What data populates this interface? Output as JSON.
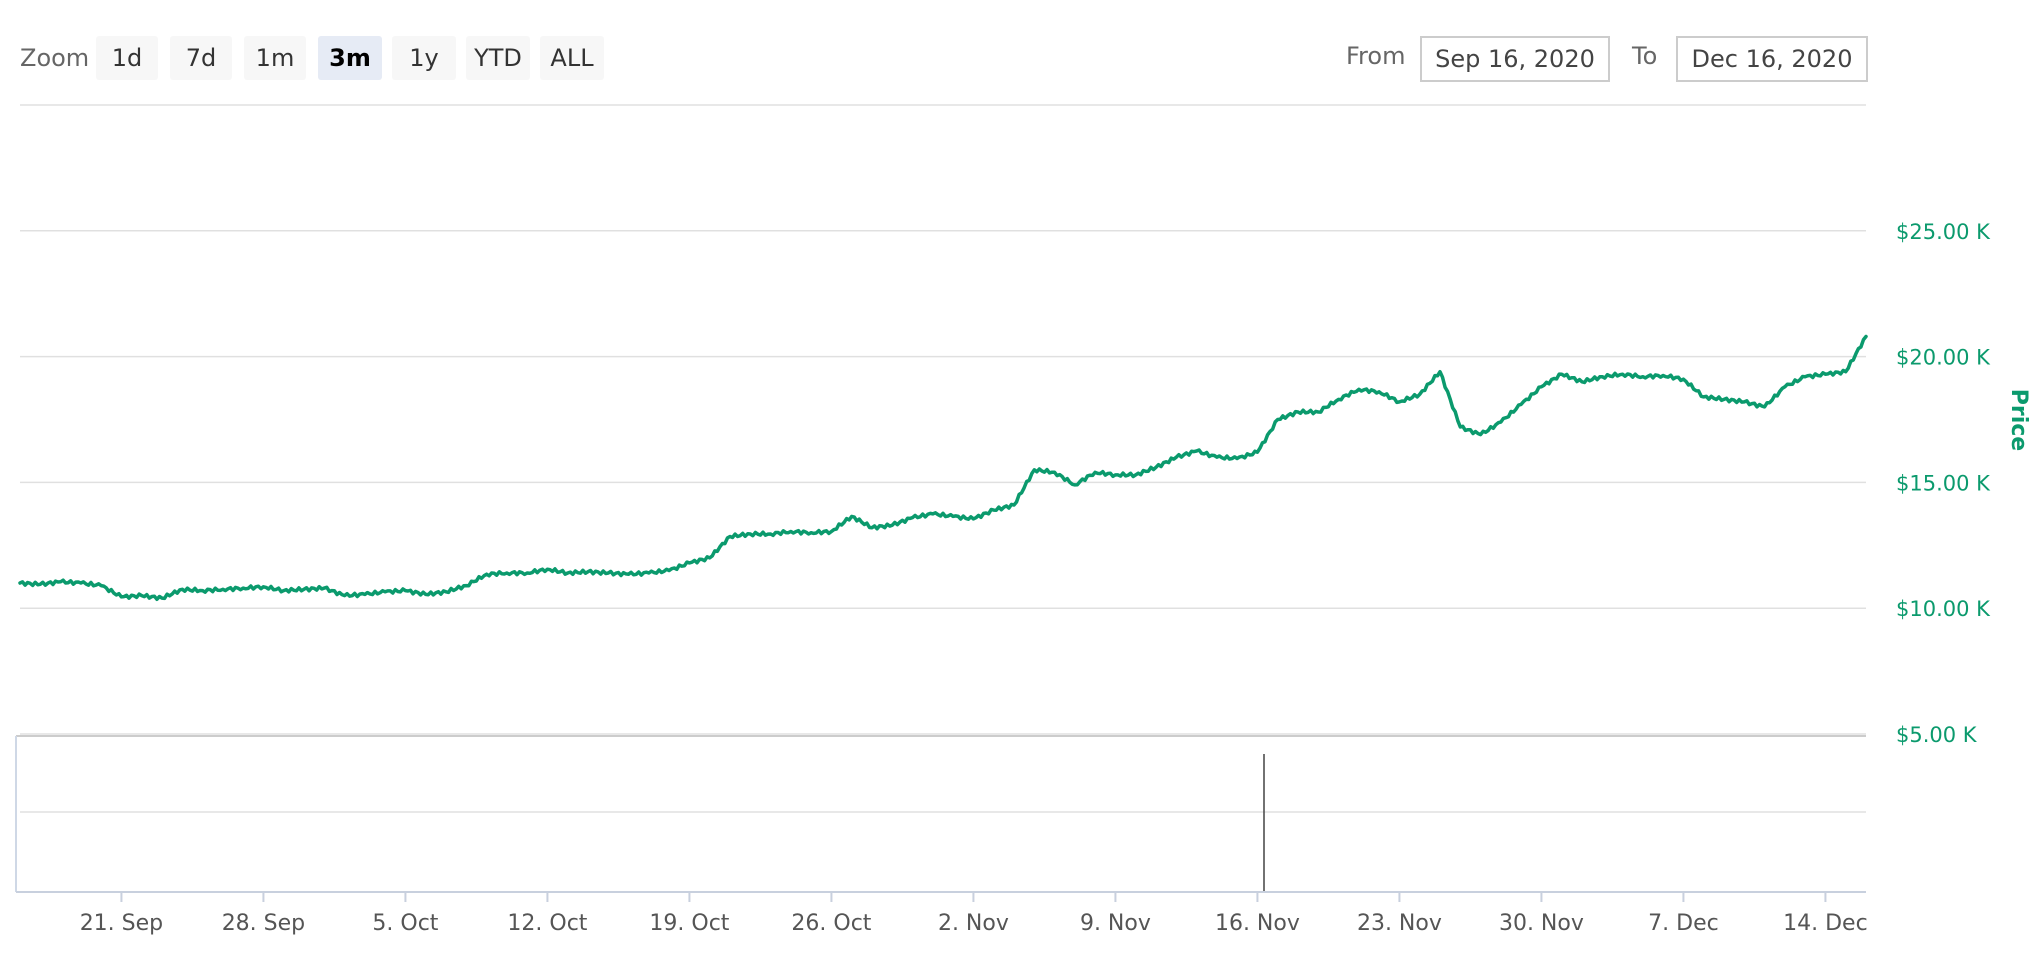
{
  "toolbar": {
    "zoom_label": "Zoom",
    "zoom_buttons": [
      "1d",
      "7d",
      "1m",
      "3m",
      "1y",
      "YTD",
      "ALL"
    ],
    "active_zoom": "3m",
    "from_label": "From",
    "from_value": "Sep 16, 2020",
    "to_label": "To",
    "to_value": "Dec 16, 2020"
  },
  "colors": {
    "line": "#0b9a6d",
    "grid": "#e0e0e0",
    "axis_text": "#0b9a6d",
    "navigator_marker": "#444444"
  },
  "chart_data": {
    "type": "line",
    "title": "",
    "xlabel": "",
    "ylabel": "Price",
    "x_ticks": [
      "21. Sep",
      "28. Sep",
      "5. Oct",
      "12. Oct",
      "19. Oct",
      "26. Oct",
      "2. Nov",
      "9. Nov",
      "16. Nov",
      "23. Nov",
      "30. Nov",
      "7. Dec",
      "14. Dec"
    ],
    "y_ticks": [
      "$5.00 K",
      "$10.00 K",
      "$15.00 K",
      "$20.00 K",
      "$25.00 K"
    ],
    "ylim": [
      5000,
      30000
    ],
    "xlim": [
      "2020-09-16",
      "2020-12-16"
    ],
    "grid": true,
    "series": [
      {
        "name": "",
        "x": [
          "2020-09-16",
          "2020-09-17",
          "2020-09-18",
          "2020-09-19",
          "2020-09-20",
          "2020-09-21",
          "2020-09-22",
          "2020-09-23",
          "2020-09-24",
          "2020-09-25",
          "2020-09-26",
          "2020-09-27",
          "2020-09-28",
          "2020-09-29",
          "2020-09-30",
          "2020-10-01",
          "2020-10-02",
          "2020-10-03",
          "2020-10-04",
          "2020-10-05",
          "2020-10-06",
          "2020-10-07",
          "2020-10-08",
          "2020-10-09",
          "2020-10-10",
          "2020-10-11",
          "2020-10-12",
          "2020-10-13",
          "2020-10-14",
          "2020-10-15",
          "2020-10-16",
          "2020-10-17",
          "2020-10-18",
          "2020-10-19",
          "2020-10-20",
          "2020-10-21",
          "2020-10-22",
          "2020-10-23",
          "2020-10-24",
          "2020-10-25",
          "2020-10-26",
          "2020-10-27",
          "2020-10-28",
          "2020-10-29",
          "2020-10-30",
          "2020-10-31",
          "2020-11-01",
          "2020-11-02",
          "2020-11-03",
          "2020-11-04",
          "2020-11-05",
          "2020-11-06",
          "2020-11-07",
          "2020-11-08",
          "2020-11-09",
          "2020-11-10",
          "2020-11-11",
          "2020-11-12",
          "2020-11-13",
          "2020-11-14",
          "2020-11-15",
          "2020-11-16",
          "2020-11-17",
          "2020-11-18",
          "2020-11-19",
          "2020-11-20",
          "2020-11-21",
          "2020-11-22",
          "2020-11-23",
          "2020-11-24",
          "2020-11-25",
          "2020-11-26",
          "2020-11-27",
          "2020-11-28",
          "2020-11-29",
          "2020-11-30",
          "2020-12-01",
          "2020-12-02",
          "2020-12-03",
          "2020-12-04",
          "2020-12-05",
          "2020-12-06",
          "2020-12-07",
          "2020-12-08",
          "2020-12-09",
          "2020-12-10",
          "2020-12-11",
          "2020-12-12",
          "2020-12-13",
          "2020-12-14",
          "2020-12-15",
          "2020-12-16"
        ],
        "y": [
          11000,
          10950,
          11050,
          11000,
          10900,
          10450,
          10500,
          10400,
          10750,
          10700,
          10750,
          10800,
          10850,
          10700,
          10750,
          10800,
          10500,
          10550,
          10650,
          10700,
          10550,
          10650,
          10900,
          11350,
          11400,
          11400,
          11550,
          11400,
          11450,
          11400,
          11350,
          11400,
          11500,
          11800,
          12000,
          12850,
          12950,
          12950,
          13050,
          13000,
          13050,
          13650,
          13200,
          13300,
          13600,
          13750,
          13650,
          13550,
          13900,
          14100,
          15500,
          15400,
          14900,
          15400,
          15300,
          15300,
          15600,
          16000,
          16250,
          16000,
          15950,
          16200,
          17500,
          17800,
          17800,
          18300,
          18700,
          18600,
          18200,
          18500,
          19400,
          17200,
          16900,
          17400,
          18100,
          18800,
          19300,
          19000,
          19200,
          19300,
          19200,
          19250,
          19100,
          18400,
          18300,
          18200,
          18000,
          18800,
          19200,
          19300,
          19400,
          20800
        ]
      }
    ]
  }
}
